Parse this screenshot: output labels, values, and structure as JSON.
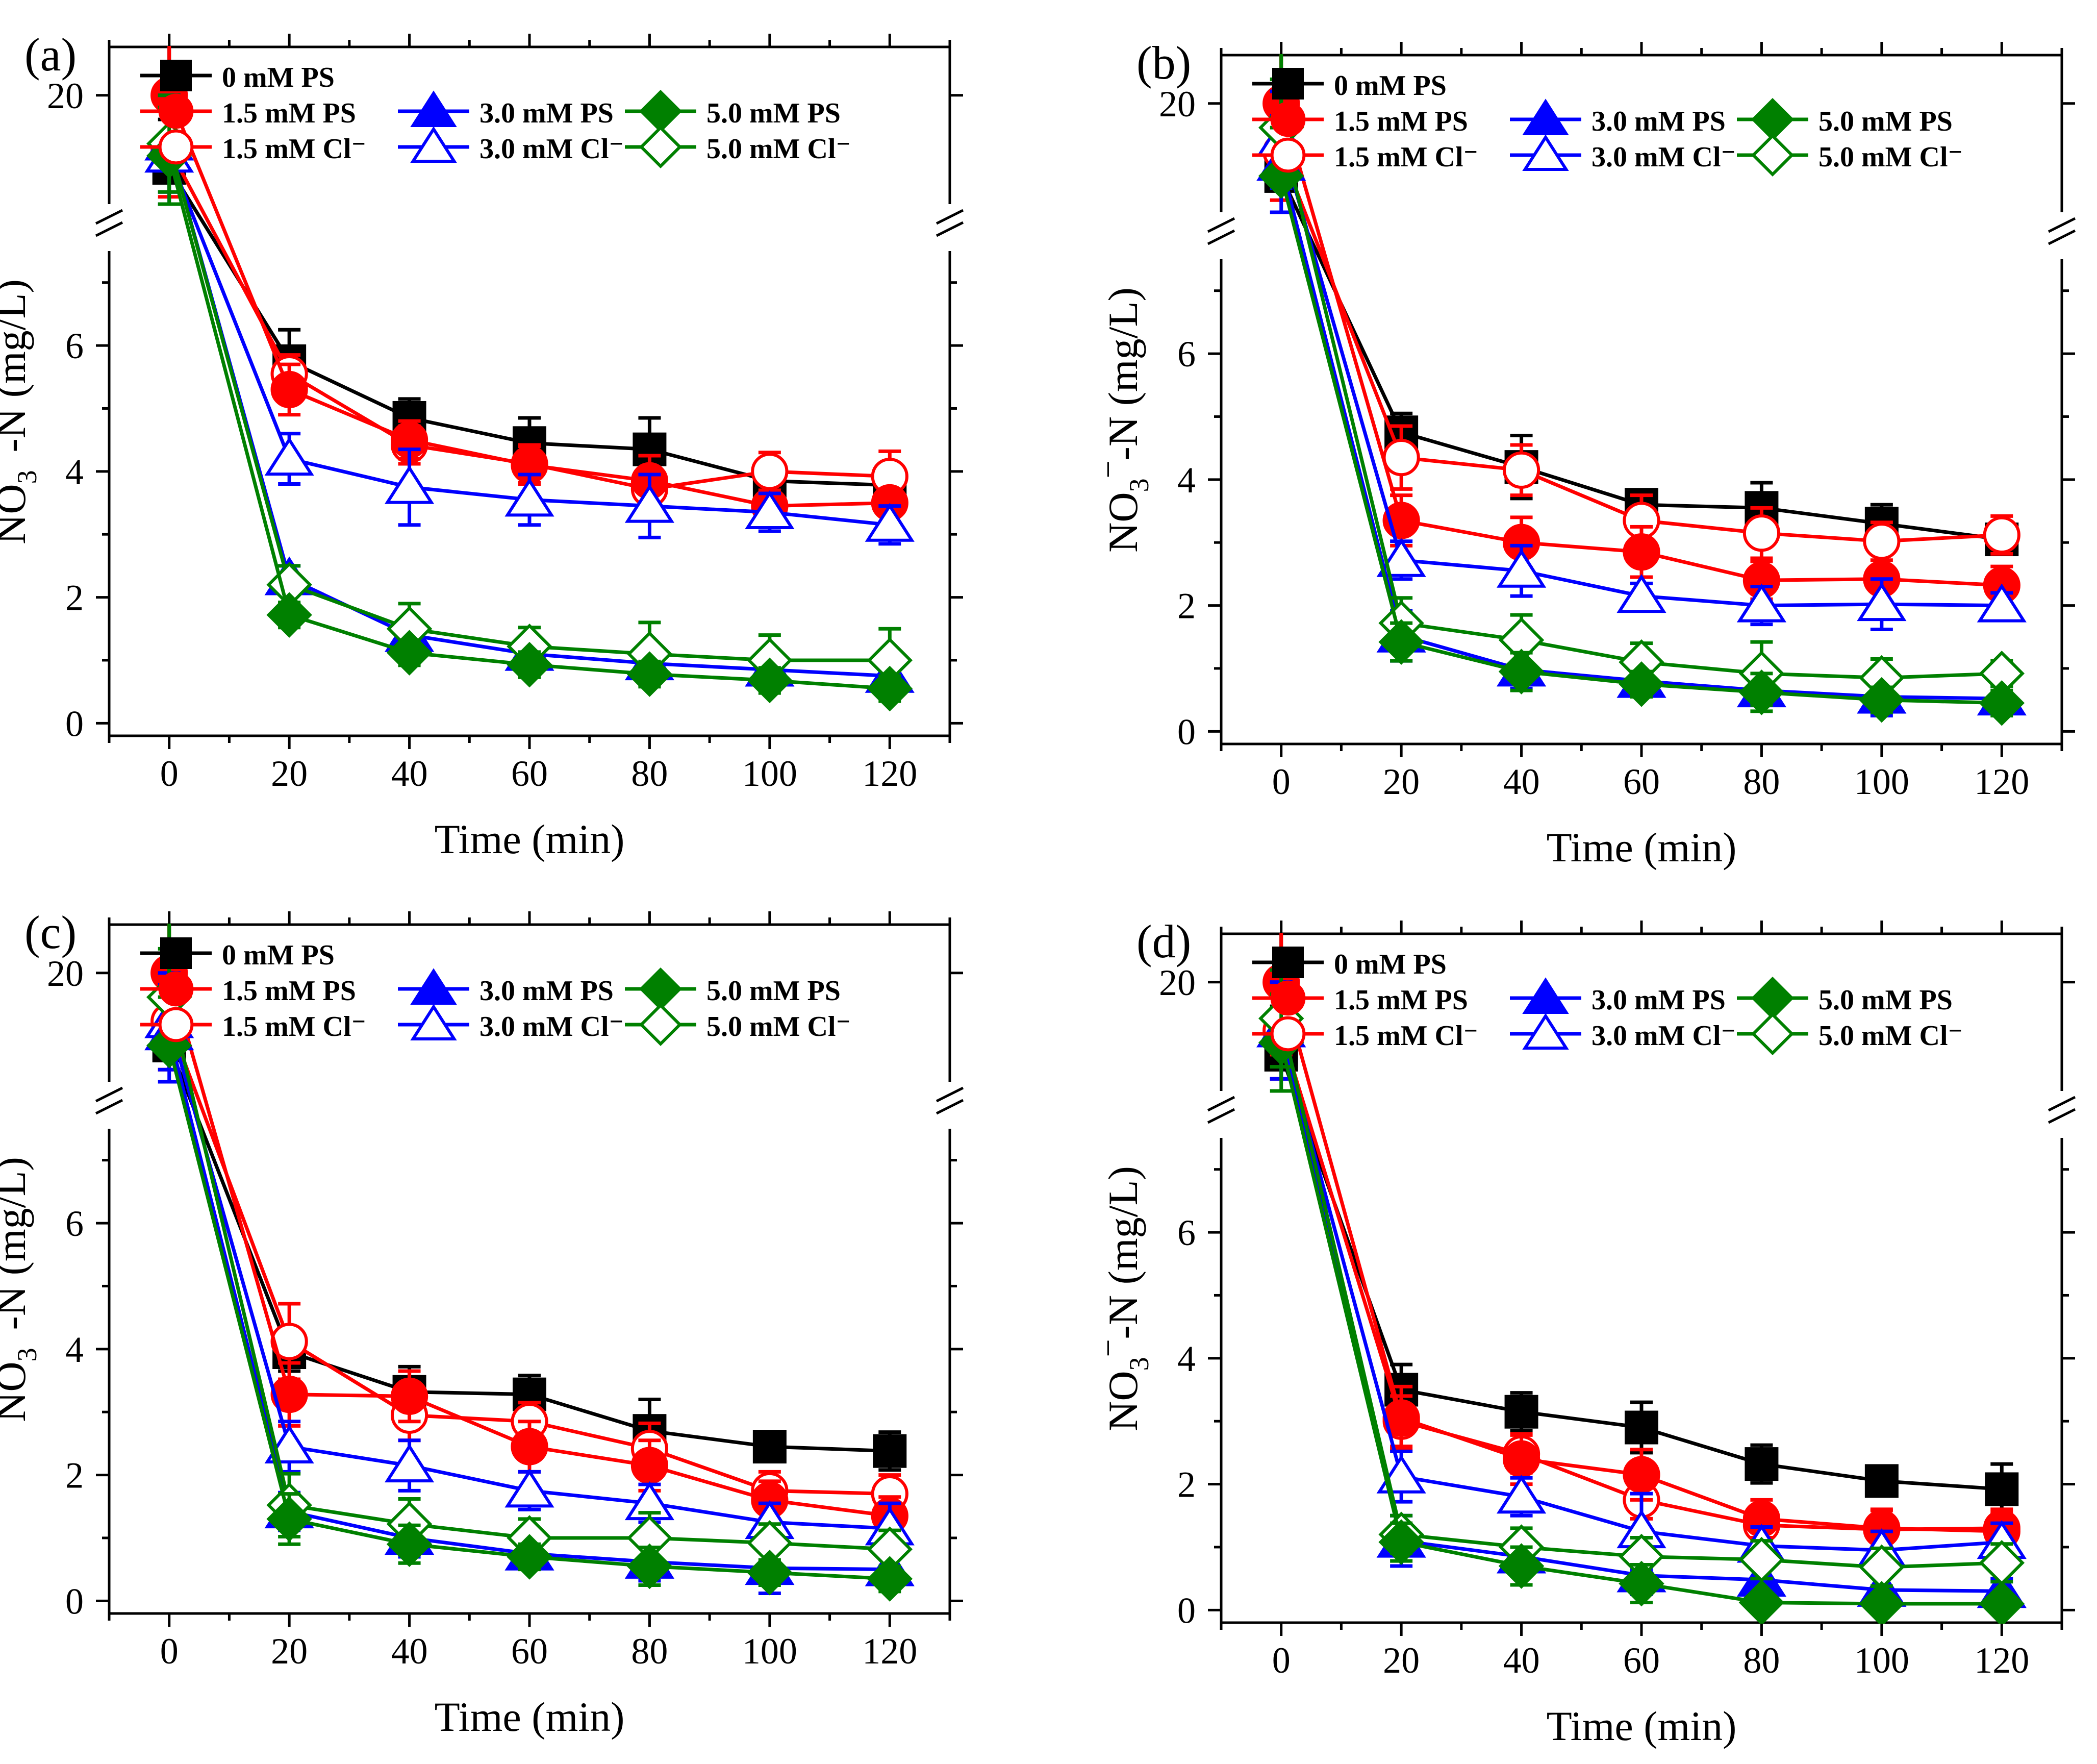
{
  "figure": {
    "description_free": true,
    "colors": {
      "0 mM PS": "#000000",
      "red": "#ff0000",
      "blue": "#0000ff",
      "green": "#008000"
    }
  },
  "chart_data": [
    {
      "type": "line",
      "panel_label": "(a)",
      "xlabel": "Time (min)",
      "ylabel_parts": [
        "NO",
        "3",
        "−",
        "-N (mg/L)"
      ],
      "x": [
        0,
        20,
        40,
        60,
        80,
        100,
        120
      ],
      "x_ticks": [
        "0",
        "20",
        "40",
        "60",
        "80",
        "100",
        "120"
      ],
      "xlim": [
        -10,
        130
      ],
      "ylim_lower": [
        -0.2,
        7.5
      ],
      "ylim_upper": [
        15.5,
        22
      ],
      "y_ticks_lower": [
        "0",
        "2",
        "4",
        "6"
      ],
      "y_ticks_upper": [
        "20"
      ],
      "series": [
        {
          "name": "0 mM PS",
          "color": "#000000",
          "marker": "square",
          "filled": true,
          "values": [
            17.0,
            5.75,
            4.85,
            4.45,
            4.35,
            3.85,
            3.78
          ],
          "errors": [
            2.0,
            0.5,
            0.3,
            0.4,
            0.5,
            0.3,
            0.2
          ]
        },
        {
          "name": "1.5 mM PS",
          "color": "#ff0000",
          "marker": "circle",
          "filled": true,
          "values": [
            20.0,
            5.3,
            4.5,
            4.1,
            3.85,
            3.45,
            3.5
          ],
          "errors": [
            2.5,
            0.4,
            0.3,
            0.3,
            0.4,
            0.2,
            0.2
          ]
        },
        {
          "name": "3.0 mM PS",
          "color": "#0000ff",
          "marker": "triangle",
          "filled": true,
          "values": [
            18.0,
            2.3,
            1.4,
            1.1,
            0.95,
            0.85,
            0.75
          ],
          "errors": [
            2.0,
            0.2,
            0.2,
            0.2,
            0.2,
            0.2,
            0.2
          ]
        },
        {
          "name": "5.0 mM PS",
          "color": "#008000",
          "marker": "diamond",
          "filled": true,
          "values": [
            17.5,
            1.72,
            1.12,
            0.93,
            0.78,
            0.68,
            0.55
          ],
          "errors": [
            2.0,
            0.2,
            0.2,
            0.2,
            0.2,
            0.2,
            0.2
          ]
        },
        {
          "name": "1.5 mM Cl⁻",
          "color": "#ff0000",
          "marker": "circle",
          "filled": false,
          "values": [
            17.8,
            5.55,
            4.42,
            4.12,
            3.72,
            4.0,
            3.92
          ],
          "errors": [
            2.0,
            0.3,
            0.3,
            0.3,
            0.3,
            0.3,
            0.4
          ]
        },
        {
          "name": "3.0 mM Cl⁻",
          "color": "#0000ff",
          "marker": "triangle",
          "filled": false,
          "values": [
            17.5,
            4.2,
            3.75,
            3.55,
            3.45,
            3.35,
            3.15
          ],
          "errors": [
            2.0,
            0.4,
            0.6,
            0.4,
            0.5,
            0.3,
            0.3
          ]
        },
        {
          "name": "5.0 mM Cl⁻",
          "color": "#008000",
          "marker": "diamond",
          "filled": false,
          "values": [
            18.0,
            2.2,
            1.5,
            1.22,
            1.1,
            1.0,
            1.0
          ],
          "errors": [
            2.0,
            0.3,
            0.4,
            0.3,
            0.5,
            0.4,
            0.5
          ]
        }
      ]
    },
    {
      "type": "line",
      "panel_label": "(b)",
      "xlabel": "Time (min)",
      "ylabel_parts": [
        "NO",
        "3",
        "−",
        "-N (mg/L)"
      ],
      "x": [
        0,
        20,
        40,
        60,
        80,
        100,
        120
      ],
      "x_ticks": [
        "0",
        "20",
        "40",
        "60",
        "80",
        "100",
        "120"
      ],
      "xlim": [
        -10,
        130
      ],
      "ylim_lower": [
        -0.2,
        7.5
      ],
      "ylim_upper": [
        15.5,
        22
      ],
      "y_ticks_lower": [
        "0",
        "2",
        "4",
        "6"
      ],
      "y_ticks_upper": [
        "20"
      ],
      "series": [
        {
          "name": "0 mM PS",
          "color": "#000000",
          "marker": "square",
          "filled": true,
          "values": [
            17.0,
            4.75,
            4.2,
            3.6,
            3.55,
            3.3,
            3.05
          ],
          "errors": [
            2.0,
            0.3,
            0.5,
            0.2,
            0.4,
            0.3,
            0.2
          ]
        },
        {
          "name": "1.5 mM PS",
          "color": "#ff0000",
          "marker": "circle",
          "filled": true,
          "values": [
            20.0,
            3.35,
            3.0,
            2.85,
            2.4,
            2.42,
            2.32
          ],
          "errors": [
            2.5,
            0.4,
            0.4,
            0.4,
            0.3,
            0.2,
            0.3
          ]
        },
        {
          "name": "3.0 mM PS",
          "color": "#0000ff",
          "marker": "triangle",
          "filled": true,
          "values": [
            17.5,
            1.52,
            0.98,
            0.8,
            0.65,
            0.55,
            0.52
          ],
          "errors": [
            2.0,
            0.4,
            0.3,
            0.2,
            0.2,
            0.3,
            0.2
          ]
        },
        {
          "name": "5.0 mM PS",
          "color": "#008000",
          "marker": "diamond",
          "filled": true,
          "values": [
            17.0,
            1.42,
            0.95,
            0.75,
            0.62,
            0.5,
            0.45
          ],
          "errors": [
            2.0,
            0.3,
            0.3,
            0.2,
            0.3,
            0.2,
            0.2
          ]
        },
        {
          "name": "1.5 mM Cl⁻",
          "color": "#ff0000",
          "marker": "circle",
          "filled": false,
          "values": [
            18.0,
            4.35,
            4.15,
            3.35,
            3.15,
            3.02,
            3.12
          ],
          "errors": [
            2.0,
            0.5,
            0.4,
            0.4,
            0.4,
            0.3,
            0.3
          ]
        },
        {
          "name": "3.0 mM Cl⁻",
          "color": "#0000ff",
          "marker": "triangle",
          "filled": false,
          "values": [
            18.5,
            2.72,
            2.55,
            2.15,
            2.0,
            2.02,
            2.0
          ],
          "errors": [
            2.0,
            0.3,
            0.4,
            0.2,
            0.3,
            0.4,
            0.2
          ]
        },
        {
          "name": "5.0 mM Cl⁻",
          "color": "#008000",
          "marker": "diamond",
          "filled": false,
          "values": [
            19.0,
            1.72,
            1.45,
            1.1,
            0.92,
            0.85,
            0.92
          ],
          "errors": [
            2.0,
            0.4,
            0.4,
            0.3,
            0.5,
            0.3,
            0.2
          ]
        }
      ]
    },
    {
      "type": "line",
      "panel_label": "(c)",
      "xlabel": "Time (min)",
      "ylabel_parts": [
        "NO",
        "3",
        "−",
        "-N (mg/L)"
      ],
      "x": [
        0,
        20,
        40,
        60,
        80,
        100,
        120
      ],
      "x_ticks": [
        "0",
        "20",
        "40",
        "60",
        "80",
        "100",
        "120"
      ],
      "xlim": [
        -10,
        130
      ],
      "ylim_lower": [
        -0.2,
        7.5
      ],
      "ylim_upper": [
        15.5,
        22
      ],
      "y_ticks_lower": [
        "0",
        "2",
        "4",
        "6"
      ],
      "y_ticks_upper": [
        "20"
      ],
      "series": [
        {
          "name": "0 mM PS",
          "color": "#000000",
          "marker": "square",
          "filled": true,
          "values": [
            17.0,
            3.95,
            3.32,
            3.28,
            2.7,
            2.45,
            2.38
          ],
          "errors": [
            2.0,
            0.3,
            0.4,
            0.3,
            0.5,
            0.2,
            0.3
          ]
        },
        {
          "name": "1.5 mM PS",
          "color": "#ff0000",
          "marker": "circle",
          "filled": true,
          "values": [
            20.0,
            3.28,
            3.25,
            2.45,
            2.15,
            1.6,
            1.35
          ],
          "errors": [
            3.0,
            0.5,
            0.4,
            0.4,
            0.4,
            0.3,
            0.3
          ]
        },
        {
          "name": "3.0 mM PS",
          "color": "#0000ff",
          "marker": "triangle",
          "filled": true,
          "values": [
            17.5,
            1.42,
            1.0,
            0.75,
            0.62,
            0.52,
            0.5
          ],
          "errors": [
            2.0,
            0.3,
            0.3,
            0.2,
            0.3,
            0.4,
            0.2
          ]
        },
        {
          "name": "5.0 mM PS",
          "color": "#008000",
          "marker": "diamond",
          "filled": true,
          "values": [
            17.0,
            1.3,
            0.9,
            0.7,
            0.55,
            0.45,
            0.35
          ],
          "errors": [
            2.0,
            0.4,
            0.3,
            0.2,
            0.3,
            0.2,
            0.2
          ]
        },
        {
          "name": "1.5 mM Cl⁻",
          "color": "#ff0000",
          "marker": "circle",
          "filled": false,
          "values": [
            18.0,
            4.12,
            2.95,
            2.85,
            2.42,
            1.75,
            1.7
          ],
          "errors": [
            2.0,
            0.6,
            0.4,
            0.3,
            0.4,
            0.3,
            0.3
          ]
        },
        {
          "name": "3.0 mM Cl⁻",
          "color": "#0000ff",
          "marker": "triangle",
          "filled": false,
          "values": [
            18.0,
            2.45,
            2.15,
            1.75,
            1.55,
            1.25,
            1.15
          ],
          "errors": [
            2.0,
            0.4,
            0.4,
            0.3,
            0.3,
            0.3,
            0.4
          ]
        },
        {
          "name": "5.0 mM Cl⁻",
          "color": "#008000",
          "marker": "diamond",
          "filled": false,
          "values": [
            19.0,
            1.52,
            1.22,
            1.0,
            1.0,
            0.92,
            0.82
          ],
          "errors": [
            2.0,
            0.5,
            0.4,
            0.3,
            0.4,
            0.3,
            0.3
          ]
        }
      ]
    },
    {
      "type": "line",
      "panel_label": "(d)",
      "xlabel": "Time (min)",
      "ylabel_parts": [
        "NO",
        "3",
        "−",
        "-N (mg/L)"
      ],
      "x": [
        0,
        20,
        40,
        60,
        80,
        100,
        120
      ],
      "x_ticks": [
        "0",
        "20",
        "40",
        "60",
        "80",
        "100",
        "120"
      ],
      "xlim": [
        -10,
        130
      ],
      "ylim_lower": [
        -0.2,
        7.5
      ],
      "ylim_upper": [
        15.5,
        22
      ],
      "y_ticks_lower": [
        "0",
        "2",
        "4",
        "6"
      ],
      "y_ticks_upper": [
        "20"
      ],
      "series": [
        {
          "name": "0 mM PS",
          "color": "#000000",
          "marker": "square",
          "filled": true,
          "values": [
            17.0,
            3.5,
            3.15,
            2.9,
            2.32,
            2.05,
            1.92
          ],
          "errors": [
            2.0,
            0.4,
            0.3,
            0.4,
            0.3,
            0.2,
            0.4
          ]
        },
        {
          "name": "1.5 mM PS",
          "color": "#ff0000",
          "marker": "circle",
          "filled": true,
          "values": [
            20.0,
            3.05,
            2.4,
            2.15,
            1.45,
            1.3,
            1.25
          ],
          "errors": [
            3.0,
            0.5,
            0.4,
            0.4,
            0.3,
            0.3,
            0.3
          ]
        },
        {
          "name": "3.0 mM PS",
          "color": "#0000ff",
          "marker": "triangle",
          "filled": true,
          "values": [
            18.0,
            1.1,
            0.85,
            0.55,
            0.48,
            0.32,
            0.3
          ],
          "errors": [
            2.0,
            0.4,
            0.3,
            0.3,
            0.3,
            0.3,
            0.2
          ]
        },
        {
          "name": "5.0 mM PS",
          "color": "#008000",
          "marker": "diamond",
          "filled": true,
          "values": [
            17.5,
            1.08,
            0.7,
            0.42,
            0.12,
            0.1,
            0.1
          ],
          "errors": [
            2.0,
            0.3,
            0.3,
            0.3,
            0.1,
            0.1,
            0.1
          ]
        },
        {
          "name": "1.5 mM Cl⁻",
          "color": "#ff0000",
          "marker": "circle",
          "filled": false,
          "values": [
            18.0,
            3.0,
            2.48,
            1.75,
            1.35,
            1.28,
            1.3
          ],
          "errors": [
            2.0,
            0.4,
            0.3,
            0.3,
            0.3,
            0.3,
            0.3
          ]
        },
        {
          "name": "3.0 mM Cl⁻",
          "color": "#0000ff",
          "marker": "triangle",
          "filled": false,
          "values": [
            18.0,
            2.12,
            1.8,
            1.25,
            1.02,
            0.95,
            1.08
          ],
          "errors": [
            2.0,
            0.4,
            0.3,
            0.6,
            0.3,
            0.3,
            0.3
          ]
        },
        {
          "name": "5.0 mM Cl⁻",
          "color": "#008000",
          "marker": "diamond",
          "filled": false,
          "values": [
            18.5,
            1.2,
            1.0,
            0.85,
            0.8,
            0.68,
            0.75
          ],
          "errors": [
            2.0,
            0.3,
            0.3,
            0.3,
            0.3,
            0.3,
            0.3
          ]
        }
      ]
    }
  ]
}
